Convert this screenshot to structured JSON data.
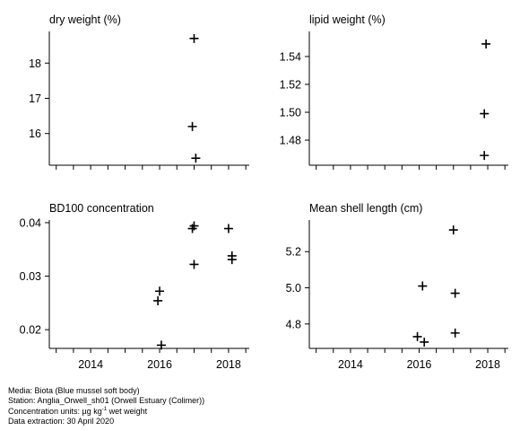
{
  "chart_data": [
    {
      "type": "scatter",
      "title": "dry weight (%)",
      "xlim": [
        2012.8,
        2018.6
      ],
      "xticks": [
        2014,
        2016,
        2018
      ],
      "show_xtick_labels": false,
      "ylim": [
        15.1,
        18.9
      ],
      "yticks": [
        16,
        17,
        18
      ],
      "ytick_labels": [
        "16",
        "17",
        "18"
      ],
      "points": [
        {
          "x": 2017.0,
          "y": 18.7
        },
        {
          "x": 2016.95,
          "y": 16.2
        },
        {
          "x": 2017.05,
          "y": 15.3
        }
      ]
    },
    {
      "type": "scatter",
      "title": "lipid weight (%)",
      "xlim": [
        2012.8,
        2018.6
      ],
      "xticks": [
        2014,
        2016,
        2018
      ],
      "show_xtick_labels": false,
      "ylim": [
        1.462,
        1.558
      ],
      "yticks": [
        1.48,
        1.5,
        1.52,
        1.54
      ],
      "ytick_labels": [
        "1.48",
        "1.50",
        "1.52",
        "1.54"
      ],
      "points": [
        {
          "x": 2017.95,
          "y": 1.549
        },
        {
          "x": 2017.9,
          "y": 1.499
        },
        {
          "x": 2017.9,
          "y": 1.469
        }
      ]
    },
    {
      "type": "scatter",
      "title": "BD100 concentration",
      "xlim": [
        2012.8,
        2018.6
      ],
      "xticks": [
        2014,
        2016,
        2018
      ],
      "show_xtick_labels": true,
      "xtick_labels": [
        "2014",
        "2016",
        "2018"
      ],
      "ylim": [
        0.0165,
        0.0405
      ],
      "yticks": [
        0.02,
        0.03,
        0.04
      ],
      "ytick_labels": [
        "0.02",
        "0.03",
        "0.04"
      ],
      "points": [
        {
          "x": 2016.0,
          "y": 0.0272
        },
        {
          "x": 2015.95,
          "y": 0.0254
        },
        {
          "x": 2016.05,
          "y": 0.0171
        },
        {
          "x": 2017.0,
          "y": 0.0394
        },
        {
          "x": 2016.95,
          "y": 0.0389
        },
        {
          "x": 2017.0,
          "y": 0.0322
        },
        {
          "x": 2018.0,
          "y": 0.0389
        },
        {
          "x": 2018.1,
          "y": 0.0338
        },
        {
          "x": 2018.1,
          "y": 0.0331
        }
      ]
    },
    {
      "type": "scatter",
      "title": "Mean shell length (cm)",
      "xlim": [
        2012.8,
        2018.6
      ],
      "xticks": [
        2014,
        2016,
        2018
      ],
      "show_xtick_labels": true,
      "xtick_labels": [
        "2014",
        "2016",
        "2018"
      ],
      "ylim": [
        4.665,
        5.375
      ],
      "yticks": [
        4.8,
        5.0,
        5.2
      ],
      "ytick_labels": [
        "4.8",
        "5.0",
        "5.2"
      ],
      "points": [
        {
          "x": 2016.1,
          "y": 5.01
        },
        {
          "x": 2015.95,
          "y": 4.73
        },
        {
          "x": 2016.15,
          "y": 4.7
        },
        {
          "x": 2017.0,
          "y": 5.32
        },
        {
          "x": 2017.05,
          "y": 4.97
        },
        {
          "x": 2017.05,
          "y": 4.75
        }
      ]
    }
  ],
  "footer": {
    "media": "Media: Biota (Blue mussel soft body)",
    "station": "Station: Anglia_Orwell_sh01 (Orwell Estuary (Colimer))",
    "units_prefix": "Concentration units:  µg kg",
    "units_sup": "-1",
    "units_suffix": " wet weight",
    "extraction": "Data extraction: 30 April 2020"
  }
}
